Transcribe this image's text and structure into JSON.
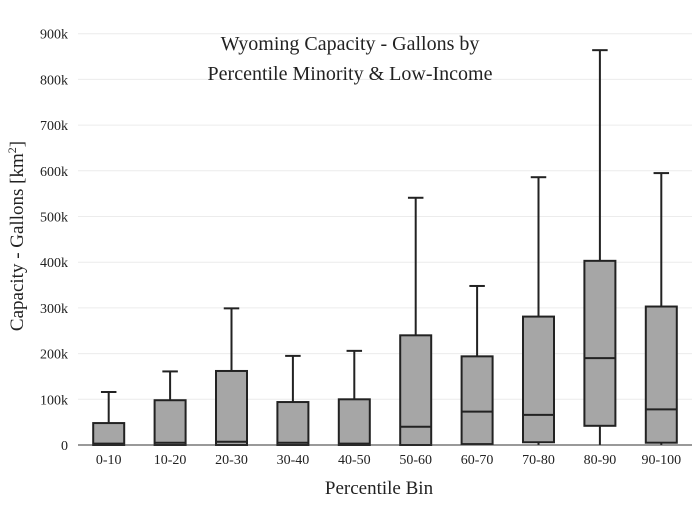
{
  "chart_data": {
    "type": "box",
    "title_lines": [
      "Wyoming Capacity - Gallons by",
      "Percentile Minority & Low-Income"
    ],
    "xlabel": "Percentile Bin",
    "ylabel": "Capacity - Gallons  [km",
    "ylabel_sup": "2",
    "ylabel_close": "]",
    "ylim": [
      0,
      930000
    ],
    "yticks": [
      0,
      100000,
      200000,
      300000,
      400000,
      500000,
      600000,
      700000,
      800000,
      900000
    ],
    "ytick_labels": [
      "0",
      "100k",
      "200k",
      "300k",
      "400k",
      "500k",
      "600k",
      "700k",
      "800k",
      "900k"
    ],
    "grid": true,
    "categories": [
      "0-10",
      "10-20",
      "20-30",
      "30-40",
      "40-50",
      "50-60",
      "60-70",
      "70-80",
      "80-90",
      "90-100"
    ],
    "boxes": [
      {
        "min": 0,
        "q1": 0,
        "median": 3000,
        "q3": 48000,
        "max": 116000
      },
      {
        "min": 0,
        "q1": 0,
        "median": 5000,
        "q3": 98000,
        "max": 161000
      },
      {
        "min": 0,
        "q1": 0,
        "median": 7000,
        "q3": 162000,
        "max": 299000
      },
      {
        "min": 0,
        "q1": 0,
        "median": 5000,
        "q3": 94000,
        "max": 195000
      },
      {
        "min": 0,
        "q1": 0,
        "median": 3000,
        "q3": 100000,
        "max": 206000
      },
      {
        "min": 0,
        "q1": 0,
        "median": 40000,
        "q3": 240000,
        "max": 541000
      },
      {
        "min": 0,
        "q1": 2000,
        "median": 73000,
        "q3": 194000,
        "max": 348000
      },
      {
        "min": 0,
        "q1": 6000,
        "median": 66000,
        "q3": 281000,
        "max": 586000
      },
      {
        "min": 0,
        "q1": 42000,
        "median": 190000,
        "q3": 403000,
        "max": 864000
      },
      {
        "min": 0,
        "q1": 5000,
        "median": 78000,
        "q3": 303000,
        "max": 595000
      }
    ],
    "colors": {
      "box_fill": "#a6a6a6",
      "box_stroke": "#222222",
      "grid": "#ececec",
      "axis": "#333333"
    }
  }
}
